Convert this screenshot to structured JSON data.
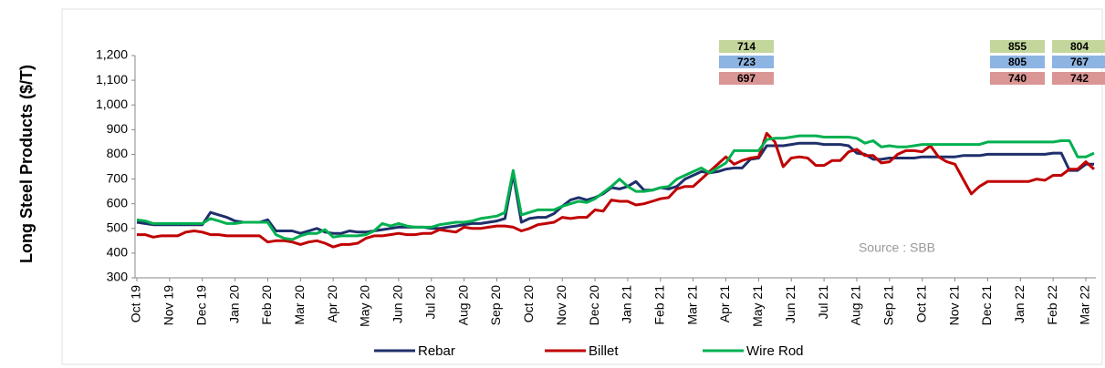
{
  "chart_data": {
    "type": "line",
    "ylabel": "Long Steel Products ($/T)",
    "source": "Source : SBB",
    "categories": [
      "Oct 19",
      null,
      null,
      null,
      "Nov 19",
      null,
      null,
      null,
      "Dec 19",
      null,
      null,
      null,
      "Jan 20",
      null,
      null,
      null,
      "Feb 20",
      null,
      null,
      null,
      "Mar 20",
      null,
      null,
      null,
      "Apr 20",
      null,
      null,
      null,
      "May 20",
      null,
      null,
      null,
      "Jun 20",
      null,
      null,
      null,
      "Jul 20",
      null,
      null,
      null,
      "Aug 20",
      null,
      null,
      null,
      "Sep 20",
      null,
      null,
      null,
      "Oct 20",
      null,
      null,
      null,
      "Nov 20",
      null,
      null,
      null,
      "Dec 20",
      null,
      null,
      null,
      "Jan 21",
      null,
      null,
      null,
      "Feb 21",
      null,
      null,
      null,
      "Mar 21",
      null,
      null,
      null,
      "Apr 21",
      null,
      null,
      null,
      "May 21",
      null,
      null,
      null,
      "Jun 21",
      null,
      null,
      null,
      "Jul 21",
      null,
      null,
      null,
      "Aug 21",
      null,
      null,
      null,
      "Sep 21",
      null,
      null,
      null,
      "Oct 21",
      null,
      null,
      null,
      "Nov 21",
      null,
      null,
      null,
      "Dec 21",
      null,
      null,
      null,
      "Jan 22",
      null,
      null,
      null,
      "Feb 22",
      null,
      null,
      null,
      "Mar 22",
      null
    ],
    "series": [
      {
        "name": "Rebar",
        "color": "#1f2f6b",
        "values": [
          525,
          520,
          515,
          515,
          515,
          515,
          515,
          515,
          515,
          565,
          555,
          545,
          530,
          525,
          525,
          525,
          535,
          490,
          490,
          490,
          480,
          490,
          500,
          485,
          480,
          480,
          490,
          485,
          485,
          490,
          495,
          500,
          505,
          505,
          505,
          505,
          500,
          500,
          505,
          510,
          515,
          520,
          520,
          525,
          530,
          540,
          720,
          525,
          540,
          545,
          545,
          560,
          590,
          615,
          625,
          615,
          625,
          640,
          665,
          660,
          670,
          690,
          655,
          655,
          665,
          660,
          670,
          700,
          715,
          730,
          725,
          730,
          740,
          745,
          745,
          780,
          785,
          835,
          835,
          835,
          840,
          845,
          845,
          845,
          840,
          840,
          840,
          835,
          805,
          800,
          780,
          780,
          785,
          785,
          785,
          785,
          790,
          790,
          790,
          790,
          790,
          795,
          795,
          795,
          800,
          800,
          800,
          800,
          800,
          800,
          800,
          800,
          805,
          805,
          735,
          735,
          760,
          760
        ]
      },
      {
        "name": "Billet",
        "color": "#c00000",
        "values": [
          475,
          475,
          465,
          470,
          470,
          470,
          485,
          490,
          485,
          475,
          475,
          470,
          470,
          470,
          470,
          470,
          445,
          450,
          450,
          445,
          435,
          445,
          450,
          440,
          425,
          435,
          435,
          440,
          460,
          470,
          470,
          475,
          480,
          475,
          475,
          480,
          480,
          495,
          490,
          485,
          505,
          500,
          500,
          505,
          510,
          510,
          505,
          490,
          500,
          515,
          520,
          525,
          545,
          540,
          545,
          545,
          575,
          570,
          615,
          610,
          610,
          595,
          600,
          610,
          620,
          625,
          660,
          670,
          670,
          700,
          730,
          760,
          790,
          760,
          775,
          785,
          790,
          885,
          850,
          750,
          785,
          790,
          785,
          755,
          755,
          775,
          775,
          810,
          820,
          795,
          795,
          765,
          770,
          800,
          815,
          815,
          810,
          835,
          790,
          770,
          760,
          700,
          640,
          670,
          690,
          690,
          690,
          690,
          690,
          690,
          700,
          695,
          715,
          715,
          740,
          740,
          770,
          740
        ]
      },
      {
        "name": "Wire Rod",
        "color": "#00b050",
        "values": [
          535,
          530,
          520,
          520,
          520,
          520,
          520,
          520,
          520,
          540,
          530,
          520,
          520,
          525,
          525,
          525,
          525,
          475,
          460,
          455,
          470,
          480,
          480,
          495,
          465,
          470,
          470,
          470,
          475,
          490,
          520,
          510,
          520,
          510,
          505,
          505,
          505,
          515,
          520,
          525,
          525,
          530,
          540,
          545,
          550,
          565,
          735,
          555,
          565,
          575,
          575,
          575,
          590,
          600,
          610,
          605,
          620,
          645,
          670,
          700,
          670,
          650,
          650,
          655,
          665,
          670,
          700,
          715,
          730,
          745,
          725,
          745,
          765,
          815,
          815,
          815,
          815,
          860,
          865,
          865,
          870,
          875,
          875,
          875,
          870,
          870,
          870,
          870,
          865,
          845,
          855,
          830,
          835,
          830,
          830,
          835,
          840,
          840,
          840,
          840,
          840,
          840,
          840,
          840,
          850,
          850,
          850,
          850,
          850,
          850,
          850,
          850,
          850,
          855,
          855,
          790,
          790,
          805
        ]
      }
    ],
    "ylim": [
      300,
      1200
    ],
    "yticks": [
      300,
      400,
      500,
      600,
      700,
      800,
      900,
      {
        "value": 1000,
        "label": "1,000"
      },
      {
        "value": 1100,
        "label": "1,100"
      },
      {
        "value": 1200,
        "label": "1,200"
      }
    ],
    "annotations": [
      [
        714,
        723,
        697
      ],
      [
        855,
        805,
        740
      ],
      [
        804,
        767,
        742
      ]
    ],
    "annotation_colors": [
      "#c3d69b",
      "#8db4e2",
      "#da9694"
    ],
    "legend": "bottom"
  }
}
